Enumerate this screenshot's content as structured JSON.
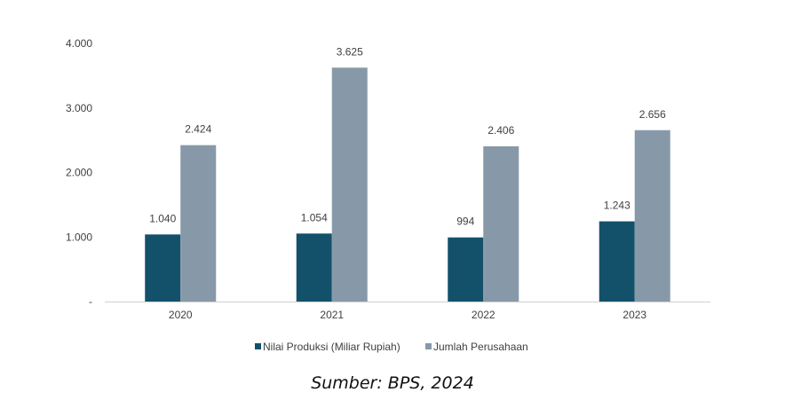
{
  "chart_data": {
    "type": "bar",
    "title": "",
    "xlabel": "",
    "ylabel": "",
    "ylim": [
      0,
      4000
    ],
    "yticks": [
      0,
      1000,
      2000,
      3000,
      4000
    ],
    "ytick_labels": [
      "-",
      "1.000",
      "2.000",
      "3.000",
      "4.000"
    ],
    "categories": [
      "2020",
      "2021",
      "2022",
      "2023"
    ],
    "series": [
      {
        "name": "Nilai Produksi (Miliar Rupiah)",
        "color": "#13516b",
        "values": [
          1040,
          1054,
          994,
          1243
        ],
        "labels": [
          "1.040",
          "1.054",
          "994",
          "1.243"
        ]
      },
      {
        "name": "Jumlah Perusahaan",
        "color": "#8799a8",
        "values": [
          2424,
          3625,
          2406,
          2656
        ],
        "labels": [
          "2.424",
          "3.625",
          "2.406",
          "2.656"
        ]
      }
    ],
    "legend_position": "bottom",
    "grid": false
  },
  "caption": "Sumber: BPS, 2024"
}
